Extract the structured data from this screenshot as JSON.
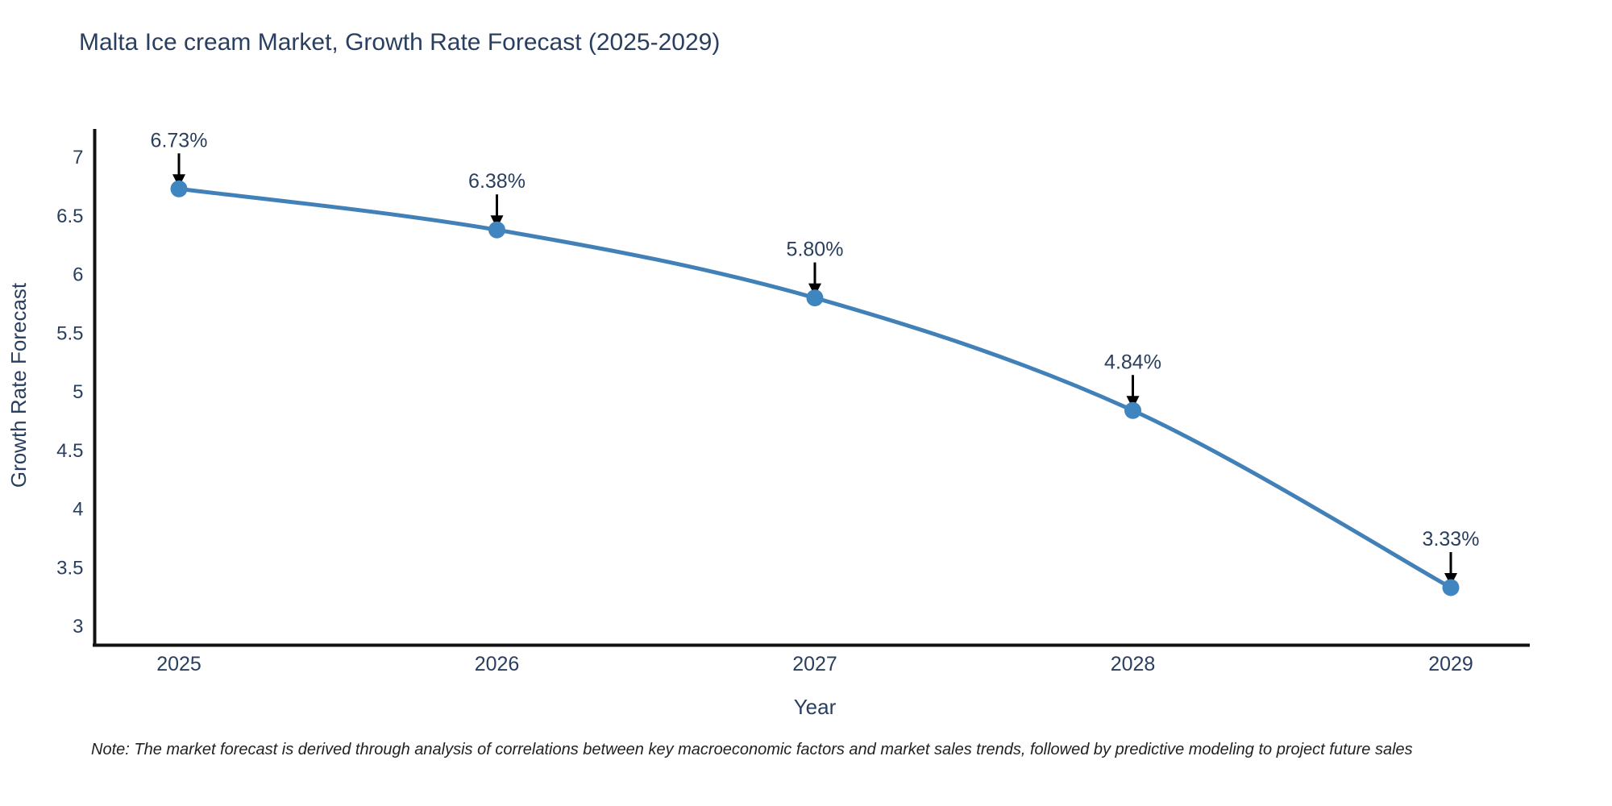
{
  "page": {
    "background": "#ffffff"
  },
  "chart_data": {
    "type": "line",
    "title": "Malta Ice cream Market, Growth Rate Forecast (2025-2029)",
    "xlabel": "Year",
    "ylabel": "Growth Rate Forecast",
    "categories": [
      "2025",
      "2026",
      "2027",
      "2028",
      "2029"
    ],
    "values": [
      6.73,
      6.38,
      5.8,
      4.84,
      3.33
    ],
    "point_labels": [
      "6.73%",
      "6.38%",
      "5.80%",
      "4.84%",
      "3.33%"
    ],
    "y_ticks": [
      7,
      6.5,
      6,
      5.5,
      5,
      4.5,
      4,
      3.5,
      3
    ],
    "y_tick_labels": [
      "7",
      "6.5",
      "6",
      "5.5",
      "5",
      "4.5",
      "4",
      "3.5",
      "3"
    ],
    "ylim": [
      2.84,
      7.24
    ],
    "grid": false,
    "legend": false,
    "annotations": "down-arrow above each data point with percent label",
    "colors": {
      "line": "#4181b8",
      "marker": "#3f86c0",
      "axis": "#111111",
      "text": "#2a3f5f",
      "annotation_text": "#2a3f5f",
      "arrow": "#000000"
    }
  },
  "note": {
    "text": "Note: The market forecast is derived through analysis of correlations between key macroeconomic factors and market sales trends, followed by predictive modeling to project future sales"
  }
}
